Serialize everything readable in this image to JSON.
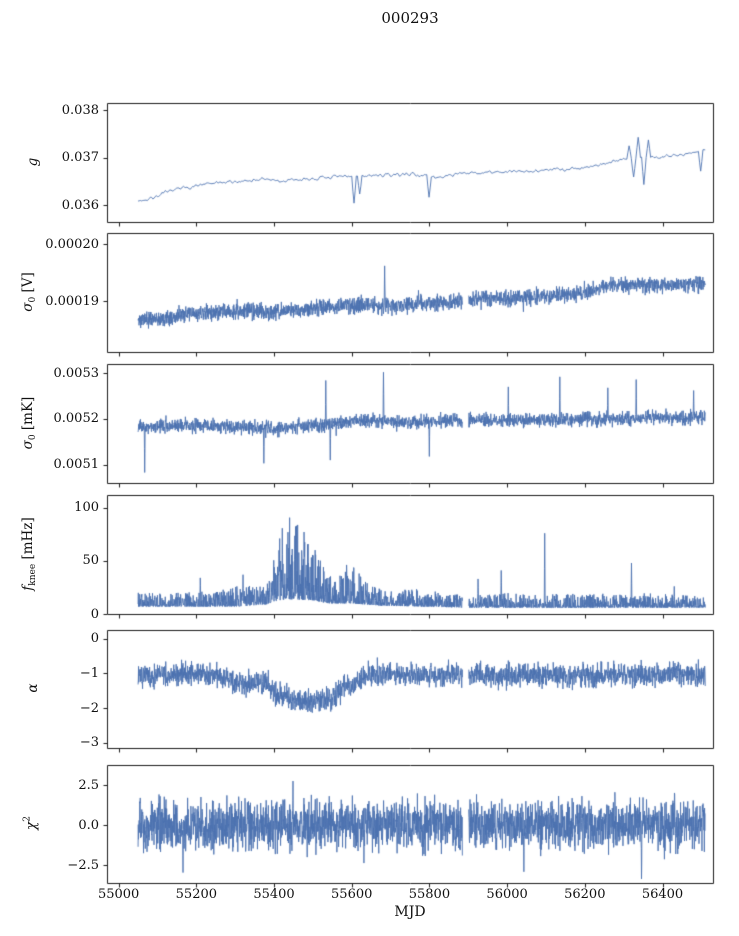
{
  "chart_data": {
    "type": "line",
    "title": "000293",
    "xlabel": "MJD",
    "line_color": "#4c72b0",
    "axis_color": "#1a1a1a",
    "x_axis": {
      "range": [
        54970,
        56530
      ],
      "data_range": [
        55050,
        56510
      ],
      "ticks": [
        {
          "v": 55000,
          "label": "55000"
        },
        {
          "v": 55200,
          "label": "55200"
        },
        {
          "v": 55400,
          "label": "55400"
        },
        {
          "v": 55600,
          "label": "55600"
        },
        {
          "v": 55800,
          "label": "55800"
        },
        {
          "v": 56000,
          "label": "56000"
        },
        {
          "v": 56200,
          "label": "56200"
        },
        {
          "v": 56400,
          "label": "56400"
        }
      ]
    },
    "data_gap": [
      55885,
      55901
    ],
    "panels": [
      {
        "name": "gain",
        "ylabel": {
          "main": "g"
        },
        "ylim": [
          0.03565,
          0.03815
        ],
        "yticks": [
          {
            "v": 0.038,
            "label": "0.038"
          },
          {
            "v": 0.037,
            "label": "0.037"
          },
          {
            "v": 0.036,
            "label": "0.036"
          }
        ],
        "style": "line",
        "seed": 7,
        "samples": 500,
        "halfwidth": 7e-05,
        "gap": false,
        "base": [
          [
            55050,
            0.0361
          ],
          [
            55075,
            0.03612
          ],
          [
            55100,
            0.0362
          ],
          [
            55140,
            0.03632
          ],
          [
            55180,
            0.03638
          ],
          [
            55230,
            0.03645
          ],
          [
            55280,
            0.03648
          ],
          [
            55330,
            0.03652
          ],
          [
            55380,
            0.03655
          ],
          [
            55420,
            0.0365
          ],
          [
            55460,
            0.03654
          ],
          [
            55500,
            0.03656
          ],
          [
            55550,
            0.03659
          ],
          [
            55600,
            0.03661
          ],
          [
            55650,
            0.03662
          ],
          [
            55700,
            0.03664
          ],
          [
            55760,
            0.03666
          ],
          [
            55820,
            0.03658
          ],
          [
            55860,
            0.03665
          ],
          [
            55920,
            0.03668
          ],
          [
            55980,
            0.0367
          ],
          [
            56040,
            0.03671
          ],
          [
            56100,
            0.03674
          ],
          [
            56160,
            0.03677
          ],
          [
            56220,
            0.03682
          ],
          [
            56270,
            0.03692
          ],
          [
            56300,
            0.03696
          ],
          [
            56340,
            0.037
          ],
          [
            56390,
            0.03702
          ],
          [
            56440,
            0.03706
          ],
          [
            56480,
            0.0371
          ],
          [
            56510,
            0.03718
          ]
        ],
        "spikes": [
          [
            55605,
            -0.00055,
            "rel"
          ],
          [
            55622,
            -0.00035,
            "rel"
          ],
          [
            55800,
            -0.00045,
            "rel"
          ],
          [
            56315,
            0.0003,
            "rel"
          ],
          [
            56326,
            -0.0004,
            "rel"
          ],
          [
            56337,
            0.00045,
            "rel"
          ],
          [
            56351,
            -0.00055,
            "rel"
          ],
          [
            56364,
            0.00035,
            "rel"
          ],
          [
            56497,
            -0.00045,
            "rel"
          ]
        ]
      },
      {
        "name": "sigma0-volts",
        "ylabel": {
          "main": "σ",
          "sub": "0",
          "unit": " [V]"
        },
        "ylim": [
          0.000181,
          0.000202
        ],
        "yticks": [
          {
            "v": 0.0002,
            "label": "0.00020"
          },
          {
            "v": 0.00019,
            "label": "0.00019"
          }
        ],
        "style": "band",
        "seed": 11,
        "samples": 2400,
        "halfwidth": 2.1e-06,
        "tailp": 0.02,
        "tailk": 1.6,
        "gap": true,
        "base": [
          [
            55050,
            0.0001866
          ],
          [
            55120,
            0.0001872
          ],
          [
            55190,
            0.0001877
          ],
          [
            55260,
            0.000188
          ],
          [
            55330,
            0.0001883
          ],
          [
            55390,
            0.0001878
          ],
          [
            55450,
            0.0001884
          ],
          [
            55520,
            0.0001888
          ],
          [
            55590,
            0.0001892
          ],
          [
            55650,
            0.0001893
          ],
          [
            55700,
            0.0001891
          ],
          [
            55760,
            0.0001894
          ],
          [
            55820,
            0.0001896
          ],
          [
            55880,
            0.0001898
          ],
          [
            55905,
            0.0001903
          ],
          [
            55970,
            0.0001905
          ],
          [
            56040,
            0.0001906
          ],
          [
            56110,
            0.0001909
          ],
          [
            56180,
            0.0001913
          ],
          [
            56230,
            0.000192
          ],
          [
            56270,
            0.0001928
          ],
          [
            56310,
            0.0001926
          ],
          [
            56350,
            0.000193
          ],
          [
            56400,
            0.0001927
          ],
          [
            56450,
            0.0001929
          ],
          [
            56510,
            0.000193
          ]
        ],
        "spikes": [
          [
            55685,
            0.0001962,
            "abs"
          ]
        ]
      },
      {
        "name": "sigma0-millikelvin",
        "ylabel": {
          "main": "σ",
          "sub": "0",
          "unit": " [mK]"
        },
        "ylim": [
          0.00506,
          0.00532
        ],
        "yticks": [
          {
            "v": 0.0053,
            "label": "0.0053"
          },
          {
            "v": 0.0052,
            "label": "0.0052"
          },
          {
            "v": 0.0051,
            "label": "0.0051"
          }
        ],
        "style": "band",
        "seed": 23,
        "samples": 2400,
        "halfwidth": 2.2e-05,
        "tailp": 0.03,
        "tailk": 1.7,
        "gap": true,
        "base": [
          [
            55050,
            0.005182
          ],
          [
            55150,
            0.005186
          ],
          [
            55250,
            0.005185
          ],
          [
            55330,
            0.005183
          ],
          [
            55400,
            0.005178
          ],
          [
            55460,
            0.005184
          ],
          [
            55530,
            0.005187
          ],
          [
            55580,
            0.005191
          ],
          [
            55620,
            0.005196
          ],
          [
            55680,
            0.005195
          ],
          [
            55740,
            0.005192
          ],
          [
            55800,
            0.005194
          ],
          [
            55860,
            0.005196
          ],
          [
            55920,
            0.005197
          ],
          [
            56000,
            0.005196
          ],
          [
            56080,
            0.005198
          ],
          [
            56160,
            0.005199
          ],
          [
            56240,
            0.0052
          ],
          [
            56320,
            0.005202
          ],
          [
            56400,
            0.005203
          ],
          [
            56510,
            0.005203
          ]
        ],
        "spikes": [
          [
            55067,
            0.005083,
            "abs"
          ],
          [
            55374,
            0.005103,
            "abs"
          ],
          [
            55533,
            0.005284,
            "abs"
          ],
          [
            55545,
            0.00511,
            "abs"
          ],
          [
            55682,
            0.005302,
            "abs"
          ],
          [
            55800,
            0.005118,
            "abs"
          ],
          [
            56003,
            0.00527,
            "abs"
          ],
          [
            56136,
            0.005292,
            "abs"
          ],
          [
            56259,
            0.005268,
            "abs"
          ],
          [
            56332,
            0.005286,
            "abs"
          ],
          [
            56480,
            0.005262,
            "abs"
          ]
        ]
      },
      {
        "name": "knee-frequency",
        "ylabel": {
          "main": "f",
          "sub": "knee",
          "unit": " [mHz]"
        },
        "ylim": [
          0,
          112
        ],
        "yticks": [
          {
            "v": 100,
            "label": "100"
          },
          {
            "v": 50,
            "label": "50"
          },
          {
            "v": 0,
            "label": "0"
          }
        ],
        "style": "asym",
        "seed": 37,
        "samples": 2400,
        "pow": 2.6,
        "gap": true,
        "low": [
          [
            55050,
            7
          ],
          [
            55300,
            7
          ],
          [
            55380,
            9
          ],
          [
            55400,
            12
          ],
          [
            55430,
            14
          ],
          [
            55500,
            13
          ],
          [
            55540,
            10
          ],
          [
            55600,
            10
          ],
          [
            55660,
            8
          ],
          [
            55900,
            6
          ],
          [
            56510,
            6
          ]
        ],
        "high": [
          [
            55050,
            20
          ],
          [
            55150,
            20
          ],
          [
            55250,
            22
          ],
          [
            55300,
            26
          ],
          [
            55340,
            28
          ],
          [
            55380,
            26
          ],
          [
            55395,
            45
          ],
          [
            55410,
            70
          ],
          [
            55430,
            90
          ],
          [
            55445,
            93
          ],
          [
            55460,
            85
          ],
          [
            55475,
            80
          ],
          [
            55490,
            70
          ],
          [
            55505,
            62
          ],
          [
            55520,
            50
          ],
          [
            55540,
            38
          ],
          [
            55560,
            30
          ],
          [
            55575,
            40
          ],
          [
            55590,
            48
          ],
          [
            55605,
            45
          ],
          [
            55620,
            40
          ],
          [
            55640,
            32
          ],
          [
            55660,
            26
          ],
          [
            55680,
            22
          ],
          [
            55720,
            22
          ],
          [
            55760,
            24
          ],
          [
            55800,
            22
          ],
          [
            55850,
            20
          ],
          [
            55900,
            18
          ],
          [
            55950,
            18
          ],
          [
            56000,
            20
          ],
          [
            56050,
            18
          ],
          [
            56100,
            18
          ],
          [
            56150,
            20
          ],
          [
            56200,
            18
          ],
          [
            56250,
            20
          ],
          [
            56300,
            18
          ],
          [
            56350,
            20
          ],
          [
            56400,
            20
          ],
          [
            56450,
            18
          ],
          [
            56510,
            16
          ]
        ],
        "spikes": [
          [
            55210,
            34,
            "abs"
          ],
          [
            55320,
            37,
            "abs"
          ],
          [
            55925,
            33,
            "abs"
          ],
          [
            55985,
            41,
            "abs"
          ],
          [
            56097,
            76,
            "abs"
          ],
          [
            56320,
            48,
            "abs"
          ],
          [
            56430,
            26,
            "abs"
          ]
        ]
      },
      {
        "name": "alpha",
        "ylabel": {
          "main": "α"
        },
        "ylim": [
          -3.15,
          0.25
        ],
        "yticks": [
          {
            "v": 0,
            "label": "0"
          },
          {
            "v": -1,
            "label": "−1"
          },
          {
            "v": -2,
            "label": "−2"
          },
          {
            "v": -3,
            "label": "−3"
          }
        ],
        "style": "band",
        "seed": 51,
        "samples": 2400,
        "halfwidth": 0.5,
        "tailp": 0.02,
        "tailk": 1.5,
        "gap": true,
        "base": [
          [
            55050,
            -1.03
          ],
          [
            55150,
            -1.03
          ],
          [
            55250,
            -1.05
          ],
          [
            55290,
            -1.2
          ],
          [
            55320,
            -1.35
          ],
          [
            55350,
            -1.25
          ],
          [
            55380,
            -1.3
          ],
          [
            55410,
            -1.6
          ],
          [
            55440,
            -1.75
          ],
          [
            55480,
            -1.82
          ],
          [
            55520,
            -1.8
          ],
          [
            55550,
            -1.7
          ],
          [
            55575,
            -1.45
          ],
          [
            55600,
            -1.35
          ],
          [
            55625,
            -1.15
          ],
          [
            55650,
            -1.05
          ],
          [
            55750,
            -1.05
          ],
          [
            55900,
            -1.07
          ],
          [
            56000,
            -1.05
          ],
          [
            56200,
            -1.06
          ],
          [
            56510,
            -1.05
          ]
        ],
        "spikes": []
      },
      {
        "name": "chi-squared",
        "ylabel": {
          "main": "χ",
          "sup": "2"
        },
        "ylim": [
          -3.6,
          3.75
        ],
        "yticks": [
          {
            "v": 2.5,
            "label": "2.5"
          },
          {
            "v": 0,
            "label": "0.0"
          },
          {
            "v": -2.5,
            "label": "−2.5"
          }
        ],
        "style": "band",
        "seed": 63,
        "samples": 2600,
        "halfwidth": 2.25,
        "tailp": 0.02,
        "tailk": 1.25,
        "gap": true,
        "base": [
          [
            55050,
            0
          ],
          [
            56510,
            0
          ]
        ],
        "spikes": [
          [
            55166,
            -2.95,
            "abs"
          ],
          [
            55449,
            2.75,
            "abs"
          ],
          [
            56043,
            -2.9,
            "abs"
          ],
          [
            56346,
            -3.35,
            "abs"
          ]
        ]
      }
    ]
  }
}
